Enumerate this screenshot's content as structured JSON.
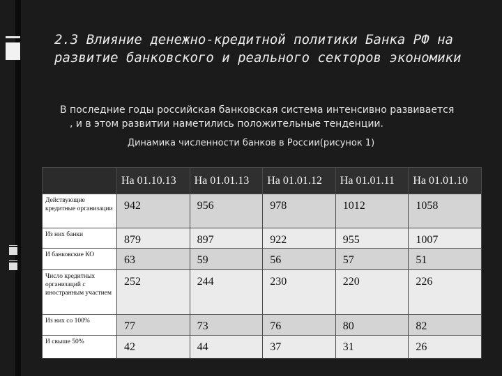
{
  "slide": {
    "title": "2.3 Влияние денежно-кредитной политики Банка РФ на развитие банковского и реального секторов экономики",
    "intro_line1": "В последние годы российская банковская система интенсивно развивается",
    "intro_line2": ", и в этом развитии наметились положительные тенденции.",
    "caption": "Динамика численности банков в России(рисунок 1)"
  },
  "table": {
    "headers": [
      "",
      "На 01.10.13",
      "На 01.01.13",
      "На 01.01.12",
      "На 01.01.11",
      "На 01.01.10"
    ],
    "rows": [
      {
        "label": "Действующие кредитные организации",
        "values": [
          "942",
          "956",
          "978",
          "1012",
          "1058"
        ]
      },
      {
        "label": "Из них банки",
        "values": [
          "879",
          "897",
          "922",
          "955",
          "1007"
        ]
      },
      {
        "label": "И банковские КО",
        "values": [
          "63",
          "59",
          "56",
          "57",
          "51"
        ]
      },
      {
        "label": "Число кредитных организаций с иностранным участием",
        "values": [
          "252",
          "244",
          "230",
          "220",
          "226"
        ]
      },
      {
        "label": "Из них со 100%",
        "values": [
          "77",
          "73",
          "76",
          "80",
          "82"
        ]
      },
      {
        "label": "И свыше 50%",
        "values": [
          "42",
          "44",
          "37",
          "31",
          "26"
        ]
      }
    ]
  },
  "colors": {
    "background": "#1b1b1b",
    "header_row": "#2f2f2f",
    "row_odd": "#d4d4d4",
    "row_even": "#ebebeb"
  }
}
